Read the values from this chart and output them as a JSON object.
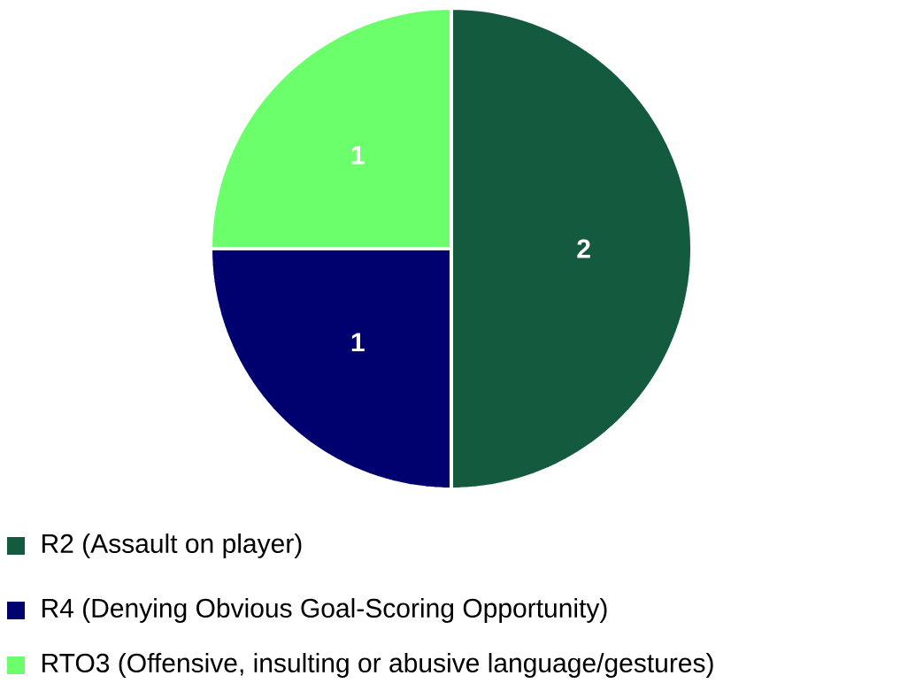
{
  "chart_data": {
    "type": "pie",
    "categories": [
      "R2 (Assault on player)",
      "R4 (Denying Obvious Goal-Scoring Opportunity)",
      "RTO3 (Offensive, insulting or abusive language/gestures)"
    ],
    "values": [
      2,
      1,
      1
    ],
    "colors": [
      "#145a3f",
      "#00006e",
      "#6cff6c"
    ],
    "data_labels": true,
    "legend": "bottom left"
  }
}
